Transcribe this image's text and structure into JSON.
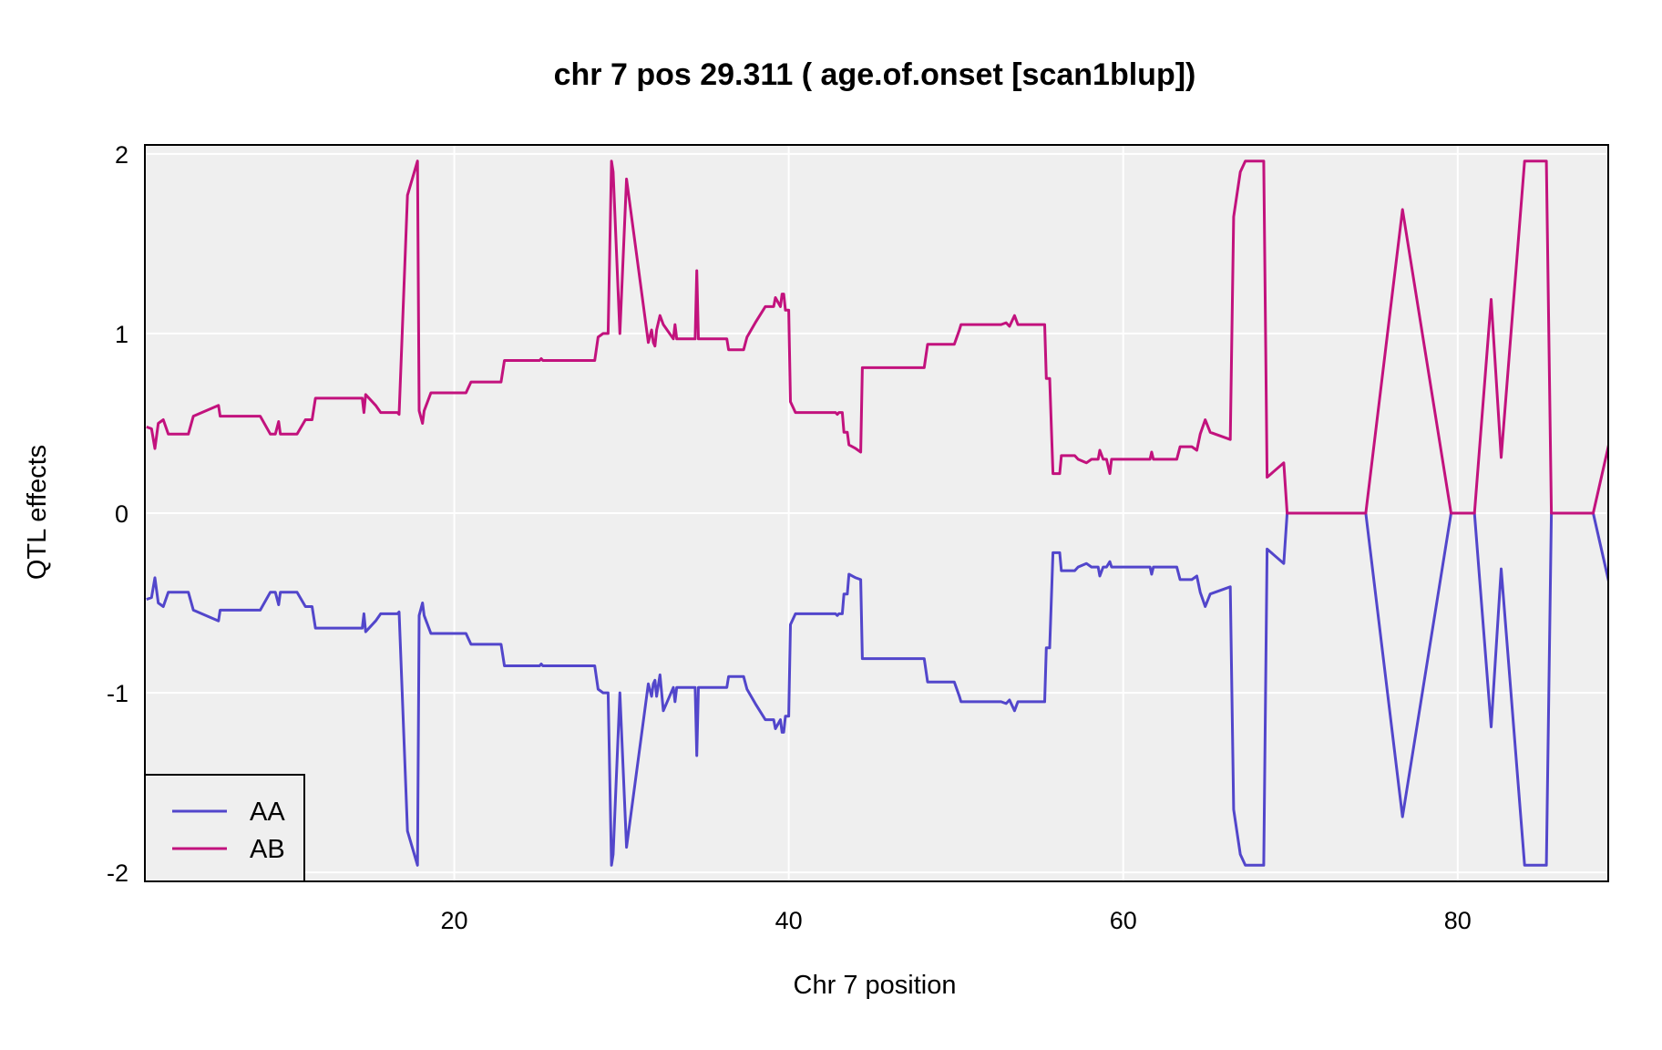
{
  "chart_data": {
    "type": "line",
    "title": "chr 7 pos 29.311 ( age.of.onset  [scan1blup])",
    "xlabel": "Chr 7 position",
    "ylabel": "QTL effects",
    "xlim": [
      1.5,
      89.0
    ],
    "ylim": [
      -2.05,
      2.05
    ],
    "xticks": [
      20,
      40,
      60,
      80
    ],
    "yticks": [
      -2,
      -1,
      0,
      1,
      2
    ],
    "grid": true,
    "legend_position": "bottom-left",
    "series": [
      {
        "name": "AA",
        "color": "#5246CB",
        "points": [
          [
            1.6,
            -0.48
          ],
          [
            1.9,
            -0.47
          ],
          [
            2.1,
            -0.36
          ],
          [
            2.3,
            -0.5
          ],
          [
            2.6,
            -0.52
          ],
          [
            2.9,
            -0.44
          ],
          [
            4.1,
            -0.44
          ],
          [
            4.4,
            -0.54
          ],
          [
            5.9,
            -0.6
          ],
          [
            6.0,
            -0.54
          ],
          [
            8.1,
            -0.54
          ],
          [
            8.4,
            -0.54
          ],
          [
            9.0,
            -0.44
          ],
          [
            9.3,
            -0.44
          ],
          [
            9.5,
            -0.51
          ],
          [
            9.6,
            -0.44
          ],
          [
            10.6,
            -0.44
          ],
          [
            11.1,
            -0.52
          ],
          [
            11.5,
            -0.52
          ],
          [
            11.7,
            -0.64
          ],
          [
            12.7,
            -0.64
          ],
          [
            13.0,
            -0.64
          ],
          [
            14.5,
            -0.64
          ],
          [
            14.6,
            -0.56
          ],
          [
            14.7,
            -0.66
          ],
          [
            15.3,
            -0.6
          ],
          [
            15.6,
            -0.56
          ],
          [
            16.2,
            -0.56
          ],
          [
            16.6,
            -0.56
          ],
          [
            16.7,
            -0.55
          ],
          [
            17.2,
            -1.77
          ],
          [
            17.8,
            -1.96
          ],
          [
            17.9,
            -0.57
          ],
          [
            18.1,
            -0.5
          ],
          [
            18.2,
            -0.57
          ],
          [
            18.6,
            -0.67
          ],
          [
            20.7,
            -0.67
          ],
          [
            21.0,
            -0.73
          ],
          [
            22.8,
            -0.73
          ],
          [
            23.0,
            -0.85
          ],
          [
            25.1,
            -0.85
          ],
          [
            25.2,
            -0.84
          ],
          [
            25.3,
            -0.85
          ],
          [
            28.4,
            -0.85
          ],
          [
            28.6,
            -0.98
          ],
          [
            28.9,
            -1.0
          ],
          [
            29.2,
            -1.0
          ],
          [
            29.4,
            -1.96
          ],
          [
            29.5,
            -1.9
          ],
          [
            29.9,
            -1.0
          ],
          [
            30.3,
            -1.86
          ],
          [
            31.6,
            -0.95
          ],
          [
            31.8,
            -1.02
          ],
          [
            31.9,
            -0.95
          ],
          [
            32.0,
            -0.93
          ],
          [
            32.1,
            -1.02
          ],
          [
            32.3,
            -0.9
          ],
          [
            32.5,
            -1.1
          ],
          [
            33.1,
            -0.97
          ],
          [
            33.2,
            -1.05
          ],
          [
            33.3,
            -0.97
          ],
          [
            34.4,
            -0.97
          ],
          [
            34.5,
            -1.35
          ],
          [
            34.6,
            -0.97
          ],
          [
            36.3,
            -0.97
          ],
          [
            36.4,
            -0.91
          ],
          [
            37.3,
            -0.91
          ],
          [
            37.5,
            -0.98
          ],
          [
            38.0,
            -1.06
          ],
          [
            38.6,
            -1.15
          ],
          [
            39.1,
            -1.15
          ],
          [
            39.2,
            -1.2
          ],
          [
            39.5,
            -1.15
          ],
          [
            39.6,
            -1.22
          ],
          [
            39.7,
            -1.22
          ],
          [
            39.8,
            -1.13
          ],
          [
            40.0,
            -1.13
          ],
          [
            40.1,
            -0.62
          ],
          [
            40.4,
            -0.56
          ],
          [
            42.8,
            -0.56
          ],
          [
            42.9,
            -0.57
          ],
          [
            43.0,
            -0.56
          ],
          [
            43.2,
            -0.56
          ],
          [
            43.3,
            -0.45
          ],
          [
            43.5,
            -0.45
          ],
          [
            43.6,
            -0.34
          ],
          [
            44.0,
            -0.36
          ],
          [
            44.3,
            -0.37
          ],
          [
            44.4,
            -0.81
          ],
          [
            48.1,
            -0.81
          ],
          [
            48.3,
            -0.94
          ],
          [
            49.9,
            -0.94
          ],
          [
            50.2,
            -1.02
          ],
          [
            50.3,
            -1.05
          ],
          [
            52.5,
            -1.05
          ],
          [
            52.7,
            -1.05
          ],
          [
            53.0,
            -1.06
          ],
          [
            53.2,
            -1.04
          ],
          [
            53.5,
            -1.1
          ],
          [
            53.7,
            -1.05
          ],
          [
            55.3,
            -1.05
          ],
          [
            55.4,
            -0.75
          ],
          [
            55.6,
            -0.75
          ],
          [
            55.8,
            -0.22
          ],
          [
            56.2,
            -0.22
          ],
          [
            56.3,
            -0.32
          ],
          [
            57.1,
            -0.32
          ],
          [
            57.3,
            -0.3
          ],
          [
            57.8,
            -0.28
          ],
          [
            58.1,
            -0.3
          ],
          [
            58.5,
            -0.3
          ],
          [
            58.6,
            -0.35
          ],
          [
            58.8,
            -0.3
          ],
          [
            59.0,
            -0.3
          ],
          [
            59.2,
            -0.27
          ],
          [
            59.3,
            -0.3
          ],
          [
            61.6,
            -0.3
          ],
          [
            61.7,
            -0.34
          ],
          [
            61.8,
            -0.3
          ],
          [
            63.2,
            -0.3
          ],
          [
            63.4,
            -0.37
          ],
          [
            64.1,
            -0.37
          ],
          [
            64.4,
            -0.35
          ],
          [
            64.6,
            -0.44
          ],
          [
            64.9,
            -0.52
          ],
          [
            65.2,
            -0.45
          ],
          [
            66.4,
            -0.41
          ],
          [
            66.6,
            -1.65
          ],
          [
            67.0,
            -1.9
          ],
          [
            67.3,
            -1.96
          ],
          [
            68.4,
            -1.96
          ],
          [
            68.6,
            -0.2
          ],
          [
            69.6,
            -0.28
          ],
          [
            69.8,
            0.0
          ],
          [
            74.5,
            0.0
          ],
          [
            76.7,
            -1.69
          ],
          [
            79.6,
            0.0
          ],
          [
            81.0,
            0.0
          ],
          [
            82.0,
            -1.19
          ],
          [
            82.6,
            -0.31
          ],
          [
            84.0,
            -1.96
          ],
          [
            85.3,
            -1.96
          ],
          [
            85.6,
            0.0
          ],
          [
            88.1,
            0.0
          ],
          [
            90.1,
            -0.82
          ],
          [
            90.4,
            -0.15
          ],
          [
            91.1,
            0.0
          ],
          [
            92.0,
            0.0
          ]
        ]
      },
      {
        "name": "AB",
        "color": "#C2127D",
        "points": [
          [
            1.6,
            0.48
          ],
          [
            1.9,
            0.47
          ],
          [
            2.1,
            0.36
          ],
          [
            2.3,
            0.5
          ],
          [
            2.6,
            0.52
          ],
          [
            2.9,
            0.44
          ],
          [
            4.1,
            0.44
          ],
          [
            4.4,
            0.54
          ],
          [
            5.9,
            0.6
          ],
          [
            6.0,
            0.54
          ],
          [
            8.1,
            0.54
          ],
          [
            8.4,
            0.54
          ],
          [
            9.0,
            0.44
          ],
          [
            9.3,
            0.44
          ],
          [
            9.5,
            0.51
          ],
          [
            9.6,
            0.44
          ],
          [
            10.6,
            0.44
          ],
          [
            11.1,
            0.52
          ],
          [
            11.5,
            0.52
          ],
          [
            11.7,
            0.64
          ],
          [
            12.7,
            0.64
          ],
          [
            13.0,
            0.64
          ],
          [
            14.5,
            0.64
          ],
          [
            14.6,
            0.56
          ],
          [
            14.7,
            0.66
          ],
          [
            15.3,
            0.6
          ],
          [
            15.6,
            0.56
          ],
          [
            16.2,
            0.56
          ],
          [
            16.6,
            0.56
          ],
          [
            16.7,
            0.55
          ],
          [
            17.2,
            1.77
          ],
          [
            17.8,
            1.96
          ],
          [
            17.9,
            0.57
          ],
          [
            18.1,
            0.5
          ],
          [
            18.2,
            0.57
          ],
          [
            18.6,
            0.67
          ],
          [
            20.7,
            0.67
          ],
          [
            21.0,
            0.73
          ],
          [
            22.8,
            0.73
          ],
          [
            23.0,
            0.85
          ],
          [
            25.1,
            0.85
          ],
          [
            25.2,
            0.86
          ],
          [
            25.3,
            0.85
          ],
          [
            28.4,
            0.85
          ],
          [
            28.6,
            0.98
          ],
          [
            28.9,
            1.0
          ],
          [
            29.2,
            1.0
          ],
          [
            29.4,
            1.96
          ],
          [
            29.5,
            1.9
          ],
          [
            29.9,
            1.0
          ],
          [
            30.3,
            1.86
          ],
          [
            31.6,
            0.95
          ],
          [
            31.8,
            1.02
          ],
          [
            31.9,
            0.95
          ],
          [
            32.0,
            0.93
          ],
          [
            32.1,
            1.02
          ],
          [
            32.3,
            1.1
          ],
          [
            32.5,
            1.05
          ],
          [
            33.1,
            0.97
          ],
          [
            33.2,
            1.05
          ],
          [
            33.3,
            0.97
          ],
          [
            34.4,
            0.97
          ],
          [
            34.5,
            1.35
          ],
          [
            34.6,
            0.97
          ],
          [
            36.3,
            0.97
          ],
          [
            36.4,
            0.91
          ],
          [
            37.3,
            0.91
          ],
          [
            37.5,
            0.98
          ],
          [
            38.0,
            1.06
          ],
          [
            38.6,
            1.15
          ],
          [
            39.1,
            1.15
          ],
          [
            39.2,
            1.2
          ],
          [
            39.5,
            1.15
          ],
          [
            39.6,
            1.22
          ],
          [
            39.7,
            1.22
          ],
          [
            39.8,
            1.13
          ],
          [
            40.0,
            1.13
          ],
          [
            40.1,
            0.62
          ],
          [
            40.4,
            0.56
          ],
          [
            42.8,
            0.56
          ],
          [
            42.9,
            0.55
          ],
          [
            43.0,
            0.56
          ],
          [
            43.2,
            0.56
          ],
          [
            43.3,
            0.45
          ],
          [
            43.5,
            0.45
          ],
          [
            43.6,
            0.38
          ],
          [
            44.0,
            0.36
          ],
          [
            44.3,
            0.34
          ],
          [
            44.4,
            0.81
          ],
          [
            48.1,
            0.81
          ],
          [
            48.3,
            0.94
          ],
          [
            49.9,
            0.94
          ],
          [
            50.2,
            1.02
          ],
          [
            50.3,
            1.05
          ],
          [
            52.5,
            1.05
          ],
          [
            52.7,
            1.05
          ],
          [
            53.0,
            1.06
          ],
          [
            53.2,
            1.04
          ],
          [
            53.5,
            1.1
          ],
          [
            53.7,
            1.05
          ],
          [
            55.3,
            1.05
          ],
          [
            55.4,
            0.75
          ],
          [
            55.6,
            0.75
          ],
          [
            55.8,
            0.22
          ],
          [
            56.2,
            0.22
          ],
          [
            56.3,
            0.32
          ],
          [
            57.1,
            0.32
          ],
          [
            57.3,
            0.3
          ],
          [
            57.8,
            0.28
          ],
          [
            58.1,
            0.3
          ],
          [
            58.5,
            0.3
          ],
          [
            58.6,
            0.35
          ],
          [
            58.8,
            0.3
          ],
          [
            59.0,
            0.3
          ],
          [
            59.2,
            0.22
          ],
          [
            59.3,
            0.3
          ],
          [
            61.6,
            0.3
          ],
          [
            61.7,
            0.34
          ],
          [
            61.8,
            0.3
          ],
          [
            63.2,
            0.3
          ],
          [
            63.4,
            0.37
          ],
          [
            64.1,
            0.37
          ],
          [
            64.4,
            0.35
          ],
          [
            64.6,
            0.44
          ],
          [
            64.9,
            0.52
          ],
          [
            65.2,
            0.45
          ],
          [
            66.4,
            0.41
          ],
          [
            66.6,
            1.65
          ],
          [
            67.0,
            1.9
          ],
          [
            67.3,
            1.96
          ],
          [
            68.4,
            1.96
          ],
          [
            68.6,
            0.2
          ],
          [
            69.6,
            0.28
          ],
          [
            69.8,
            0.0
          ],
          [
            74.5,
            0.0
          ],
          [
            76.7,
            1.69
          ],
          [
            79.6,
            0.0
          ],
          [
            81.0,
            0.0
          ],
          [
            82.0,
            1.19
          ],
          [
            82.6,
            0.31
          ],
          [
            84.0,
            1.96
          ],
          [
            85.3,
            1.96
          ],
          [
            85.6,
            0.0
          ],
          [
            88.1,
            0.0
          ],
          [
            90.1,
            0.82
          ],
          [
            90.4,
            0.15
          ],
          [
            91.1,
            0.0
          ],
          [
            92.0,
            0.0
          ]
        ]
      }
    ]
  }
}
